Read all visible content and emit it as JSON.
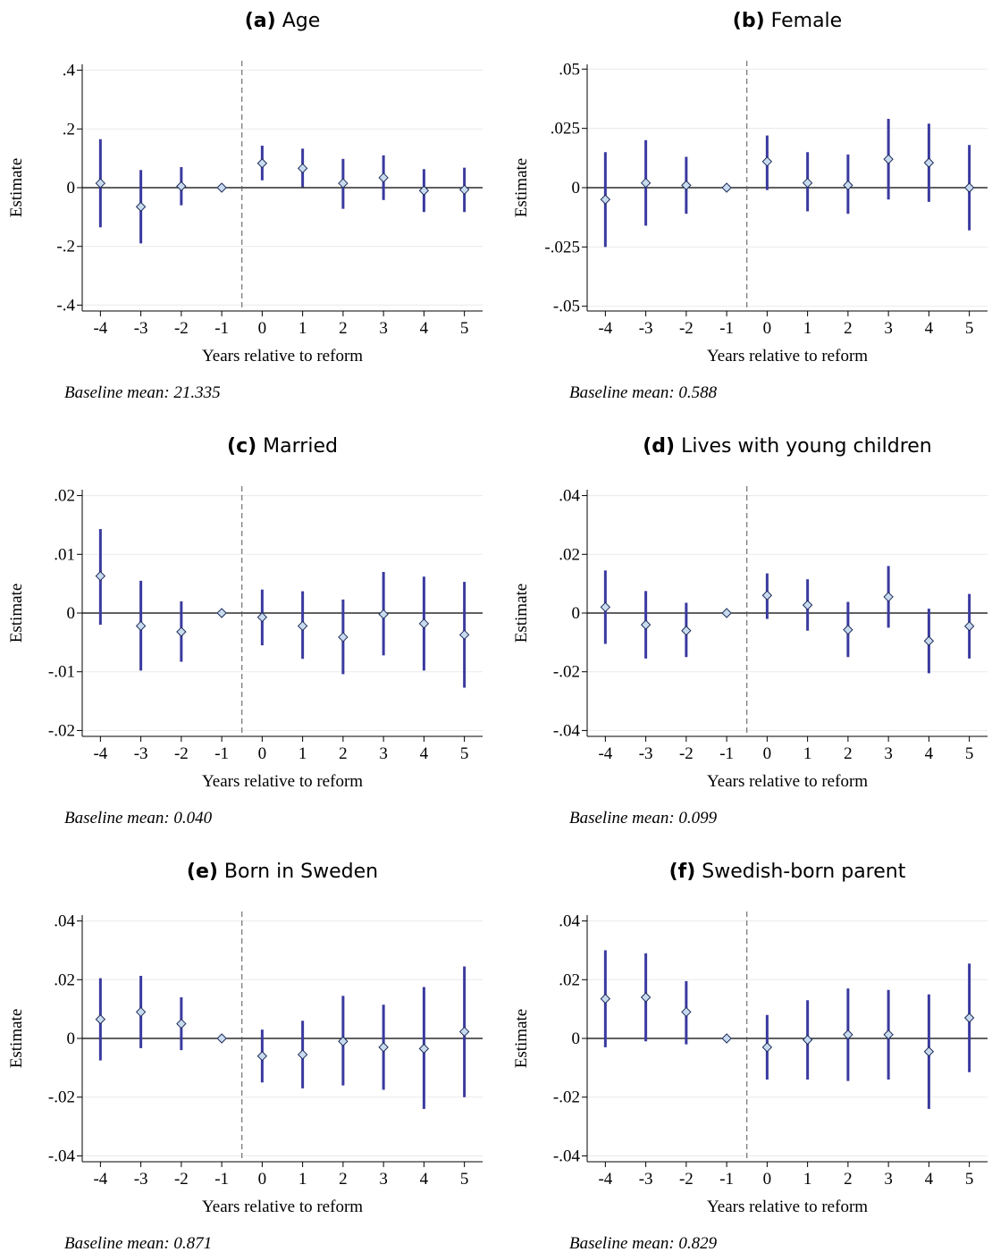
{
  "chart_data": [
    {
      "type": "errorbar",
      "panel": "(a)",
      "title": "Age",
      "ylabel": "Estimate",
      "xlabel": "Years relative to reform",
      "note": "Baseline mean: 21.335",
      "x": [
        -4,
        -3,
        -2,
        -1,
        0,
        1,
        2,
        3,
        4,
        5
      ],
      "values": [
        0.015,
        -0.065,
        0.005,
        0,
        0.083,
        0.066,
        0.015,
        0.034,
        -0.01,
        -0.007
      ],
      "ci_low": [
        -0.135,
        -0.19,
        -0.06,
        0,
        0.025,
        0.002,
        -0.072,
        -0.042,
        -0.083,
        -0.083
      ],
      "ci_high": [
        0.165,
        0.06,
        0.07,
        0,
        0.143,
        0.133,
        0.098,
        0.11,
        0.063,
        0.068
      ],
      "xlim": [
        -4.45,
        5.45
      ],
      "xticks": [
        -4,
        -3,
        -2,
        -1,
        0,
        1,
        2,
        3,
        4,
        5
      ],
      "ylim": [
        -0.42,
        0.42
      ],
      "yticks": [
        {
          "value": 0.4,
          "label": ".4"
        },
        {
          "value": 0.2,
          "label": ".2"
        },
        0,
        {
          "value": -0.2,
          "label": "-.2"
        },
        {
          "value": -0.4,
          "label": "-.4"
        }
      ],
      "hline": 0,
      "vline": -0.5,
      "color": "#3a3aa0",
      "marker_color": "#c9dbef",
      "grid": true
    },
    {
      "type": "errorbar",
      "panel": "(b)",
      "title": "Female",
      "ylabel": "Estimate",
      "xlabel": "Years relative to reform",
      "note": "Baseline mean: 0.588",
      "x": [
        -4,
        -3,
        -2,
        -1,
        0,
        1,
        2,
        3,
        4,
        5
      ],
      "values": [
        -0.005,
        0.002,
        0.001,
        0,
        0.011,
        0.002,
        0.001,
        0.012,
        0.0105,
        0
      ],
      "ci_low": [
        -0.025,
        -0.016,
        -0.011,
        0,
        -0.001,
        -0.01,
        -0.011,
        -0.005,
        -0.006,
        -0.018
      ],
      "ci_high": [
        0.015,
        0.02,
        0.013,
        0,
        0.022,
        0.015,
        0.014,
        0.029,
        0.027,
        0.018
      ],
      "xlim": [
        -4.45,
        5.45
      ],
      "xticks": [
        -4,
        -3,
        -2,
        -1,
        0,
        1,
        2,
        3,
        4,
        5
      ],
      "ylim": [
        -0.052,
        0.052
      ],
      "yticks": [
        {
          "value": 0.05,
          "label": ".05"
        },
        {
          "value": 0.025,
          "label": ".025"
        },
        0,
        {
          "value": -0.025,
          "label": "-.025"
        },
        {
          "value": -0.05,
          "label": "-.05"
        }
      ],
      "hline": 0,
      "vline": -0.5,
      "color": "#3a3aa0",
      "marker_color": "#c9dbef",
      "grid": true
    },
    {
      "type": "errorbar",
      "panel": "(c)",
      "title": "Married",
      "ylabel": "Estimate",
      "xlabel": "Years relative to reform",
      "note": "Baseline mean: 0.040",
      "x": [
        -4,
        -3,
        -2,
        -1,
        0,
        1,
        2,
        3,
        4,
        5
      ],
      "values": [
        0.0063,
        -0.0022,
        -0.0032,
        0,
        -0.0007,
        -0.0022,
        -0.0041,
        -0.0002,
        -0.0018,
        -0.0037
      ],
      "ci_low": [
        -0.002,
        -0.0098,
        -0.0083,
        0,
        -0.0055,
        -0.0078,
        -0.0104,
        -0.0072,
        -0.0098,
        -0.0127
      ],
      "ci_high": [
        0.0143,
        0.0055,
        0.002,
        0,
        0.004,
        0.0037,
        0.0023,
        0.007,
        0.0062,
        0.0053
      ],
      "xlim": [
        -4.45,
        5.45
      ],
      "xticks": [
        -4,
        -3,
        -2,
        -1,
        0,
        1,
        2,
        3,
        4,
        5
      ],
      "ylim": [
        -0.021,
        0.021
      ],
      "yticks": [
        {
          "value": 0.02,
          "label": ".02"
        },
        {
          "value": 0.01,
          "label": ".01"
        },
        0,
        {
          "value": -0.01,
          "label": "-.01"
        },
        {
          "value": -0.02,
          "label": "-.02"
        }
      ],
      "hline": 0,
      "vline": -0.5,
      "color": "#3a3aa0",
      "marker_color": "#c9dbef",
      "grid": true
    },
    {
      "type": "errorbar",
      "panel": "(d)",
      "title": "Lives with young children",
      "ylabel": "Estimate",
      "xlabel": "Years relative to reform",
      "note": "Baseline mean: 0.099",
      "x": [
        -4,
        -3,
        -2,
        -1,
        0,
        1,
        2,
        3,
        4,
        5
      ],
      "values": [
        0.002,
        -0.004,
        -0.006,
        0,
        0.006,
        0.0027,
        -0.0057,
        0.0055,
        -0.0095,
        -0.0045
      ],
      "ci_low": [
        -0.0105,
        -0.0155,
        -0.015,
        0,
        -0.002,
        -0.006,
        -0.015,
        -0.005,
        -0.0205,
        -0.0155
      ],
      "ci_high": [
        0.0145,
        0.0075,
        0.0035,
        0,
        0.0135,
        0.0115,
        0.0038,
        0.016,
        0.0015,
        0.0065
      ],
      "xlim": [
        -4.45,
        5.45
      ],
      "xticks": [
        -4,
        -3,
        -2,
        -1,
        0,
        1,
        2,
        3,
        4,
        5
      ],
      "ylim": [
        -0.042,
        0.042
      ],
      "yticks": [
        {
          "value": 0.04,
          "label": ".04"
        },
        {
          "value": 0.02,
          "label": ".02"
        },
        0,
        {
          "value": -0.02,
          "label": "-.02"
        },
        {
          "value": -0.04,
          "label": "-.04"
        }
      ],
      "hline": 0,
      "vline": -0.5,
      "color": "#3a3aa0",
      "marker_color": "#c9dbef",
      "grid": true
    },
    {
      "type": "errorbar",
      "panel": "(e)",
      "title": "Born in Sweden",
      "ylabel": "Estimate",
      "xlabel": "Years relative to reform",
      "note": "Baseline mean: 0.871",
      "x": [
        -4,
        -3,
        -2,
        -1,
        0,
        1,
        2,
        3,
        4,
        5
      ],
      "values": [
        0.0065,
        0.009,
        0.005,
        0,
        -0.006,
        -0.0055,
        -0.001,
        -0.003,
        -0.0035,
        0.0023
      ],
      "ci_low": [
        -0.0075,
        -0.0033,
        -0.004,
        0,
        -0.015,
        -0.017,
        -0.016,
        -0.0175,
        -0.024,
        -0.02
      ],
      "ci_high": [
        0.0205,
        0.0213,
        0.014,
        0,
        0.003,
        0.006,
        0.0145,
        0.0115,
        0.0175,
        0.0245
      ],
      "xlim": [
        -4.45,
        5.45
      ],
      "xticks": [
        -4,
        -3,
        -2,
        -1,
        0,
        1,
        2,
        3,
        4,
        5
      ],
      "ylim": [
        -0.042,
        0.042
      ],
      "yticks": [
        {
          "value": 0.04,
          "label": ".04"
        },
        {
          "value": 0.02,
          "label": ".02"
        },
        0,
        {
          "value": -0.02,
          "label": "-.02"
        },
        {
          "value": -0.04,
          "label": "-.04"
        }
      ],
      "hline": 0,
      "vline": -0.5,
      "color": "#3a3aa0",
      "marker_color": "#c9dbef",
      "grid": true
    },
    {
      "type": "errorbar",
      "panel": "(f)",
      "title": "Swedish-born parent",
      "ylabel": "Estimate",
      "xlabel": "Years relative to reform",
      "note": "Baseline mean: 0.829",
      "x": [
        -4,
        -3,
        -2,
        -1,
        0,
        1,
        2,
        3,
        4,
        5
      ],
      "values": [
        0.0135,
        0.014,
        0.009,
        0,
        -0.003,
        -0.0005,
        0.0013,
        0.0013,
        -0.0045,
        0.007
      ],
      "ci_low": [
        -0.003,
        -0.001,
        -0.002,
        0,
        -0.014,
        -0.014,
        -0.0145,
        -0.014,
        -0.024,
        -0.0115
      ],
      "ci_high": [
        0.03,
        0.029,
        0.0195,
        0,
        0.008,
        0.013,
        0.017,
        0.0165,
        0.015,
        0.0255
      ],
      "xlim": [
        -4.45,
        5.45
      ],
      "xticks": [
        -4,
        -3,
        -2,
        -1,
        0,
        1,
        2,
        3,
        4,
        5
      ],
      "ylim": [
        -0.042,
        0.042
      ],
      "yticks": [
        {
          "value": 0.04,
          "label": ".04"
        },
        {
          "value": 0.02,
          "label": ".02"
        },
        0,
        {
          "value": -0.02,
          "label": "-.02"
        },
        {
          "value": -0.04,
          "label": "-.04"
        }
      ],
      "hline": 0,
      "vline": -0.5,
      "color": "#3a3aa0",
      "marker_color": "#c9dbef",
      "grid": true
    }
  ]
}
